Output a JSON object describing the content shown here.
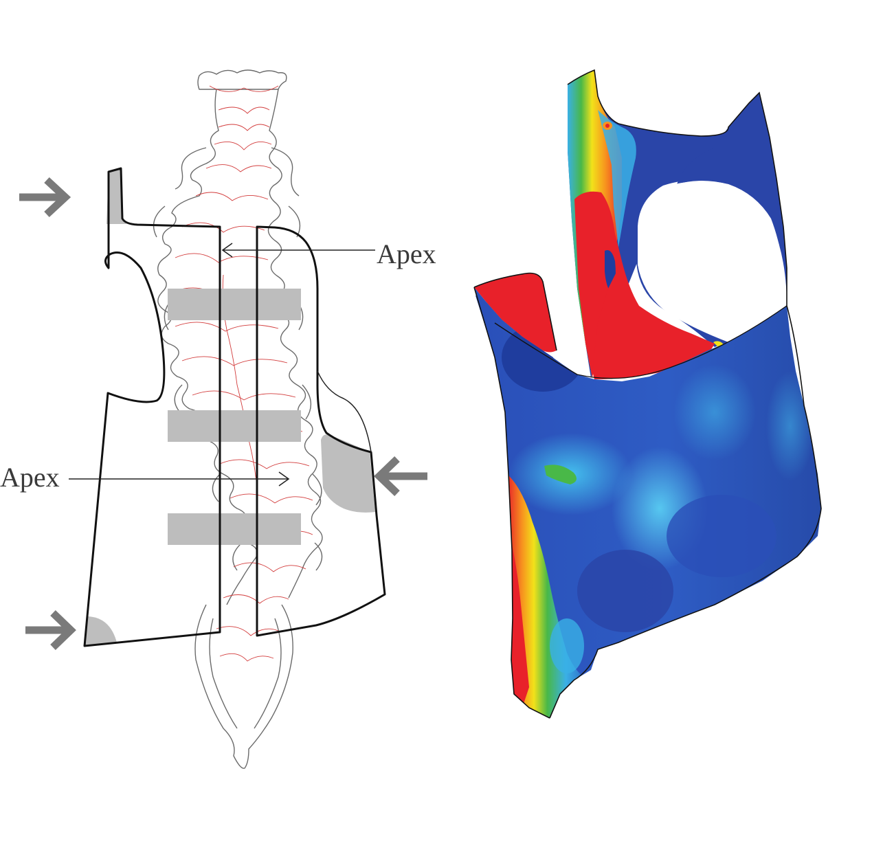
{
  "figure": {
    "annotations": {
      "apex_upper": "Apex",
      "apex_lower": "Apex"
    },
    "colors": {
      "stress_low": "#1f3d9e",
      "stress_mid_low": "#3ab0e6",
      "stress_mid": "#2fb54a",
      "stress_mid_high": "#f2e21a",
      "stress_high": "#e8212a",
      "pressure_pad": "#bdbdbd",
      "force_arrow": "#7a7a7a"
    },
    "icons": {
      "force_arrow_upper_left": "arrow-right-icon",
      "force_arrow_lower_left": "arrow-right-icon",
      "force_arrow_right": "arrow-left-icon"
    }
  }
}
